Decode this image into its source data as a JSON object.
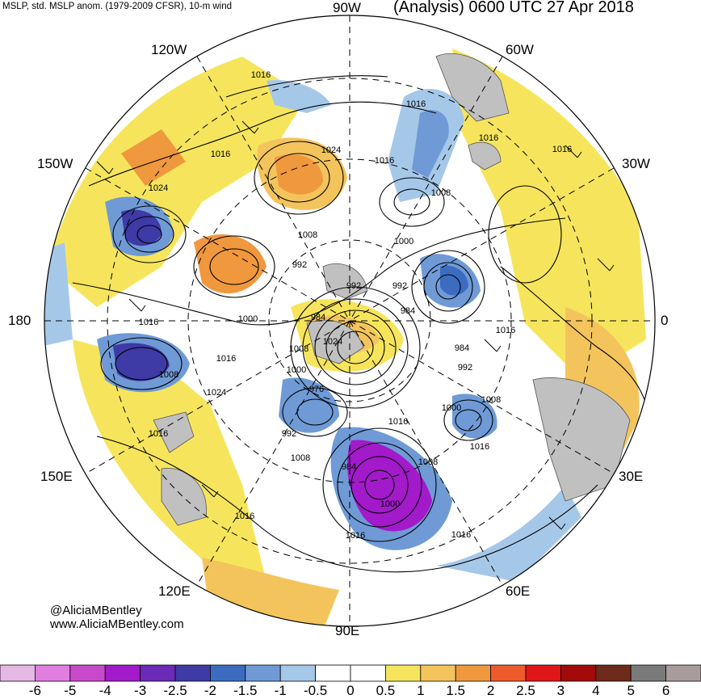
{
  "header": {
    "left": "MSLP, std. MSLP anom. (1979-2009 CFSR), 10-m wind",
    "right": "(Analysis) 0600 UTC 27 Apr 2018"
  },
  "longitude_labels": {
    "top": "90W",
    "top_left": "120W",
    "top_right": "60W",
    "upper_left": "150W",
    "upper_right": "30W",
    "left": "180",
    "right": "0",
    "lower_left": "150E",
    "lower_right": "30E",
    "bottom_left": "120E",
    "bottom_right": "60E",
    "bottom": "90E"
  },
  "credit": {
    "handle": "@AliciaMBentley",
    "site": "www.AliciaMBentley.com"
  },
  "isobar_labels": [
    "1016",
    "1016",
    "1016",
    "1024",
    "1016",
    "1016",
    "1024",
    "1016",
    "1008",
    "1008",
    "992",
    "1000",
    "992",
    "992",
    "984",
    "1016",
    "1016",
    "1000",
    "1008",
    "1024",
    "984",
    "1016",
    "1000",
    "1008",
    "984",
    "992",
    "1016",
    "1024",
    "1008",
    "976",
    "1000",
    "1016",
    "992",
    "1008",
    "1008",
    "984",
    "1000",
    "1016",
    "1016",
    "1016",
    "1016"
  ],
  "colorbar": {
    "ticks": [
      "-6",
      "-5",
      "-4",
      "-3",
      "-2.5",
      "-2",
      "-1.5",
      "-1",
      "-0.5",
      "0",
      "0.5",
      "1",
      "1.5",
      "2",
      "2.5",
      "3",
      "4",
      "5",
      "6"
    ],
    "colors": [
      "#e6b8e6",
      "#e07fe0",
      "#c94ac9",
      "#a21aca",
      "#6b2ab8",
      "#3e3aa6",
      "#3c6cc0",
      "#6f9ad6",
      "#a6c8e8",
      "#ffffff",
      "#ffffff",
      "#f6e55c",
      "#f4c45c",
      "#f0983e",
      "#ef5a2c",
      "#e0161a",
      "#a30a0a",
      "#6e2a1a",
      "#7a7a7a",
      "#a89c9c"
    ]
  },
  "style": {
    "land_gray": "#c0c0c0",
    "background": "#ffffff"
  }
}
